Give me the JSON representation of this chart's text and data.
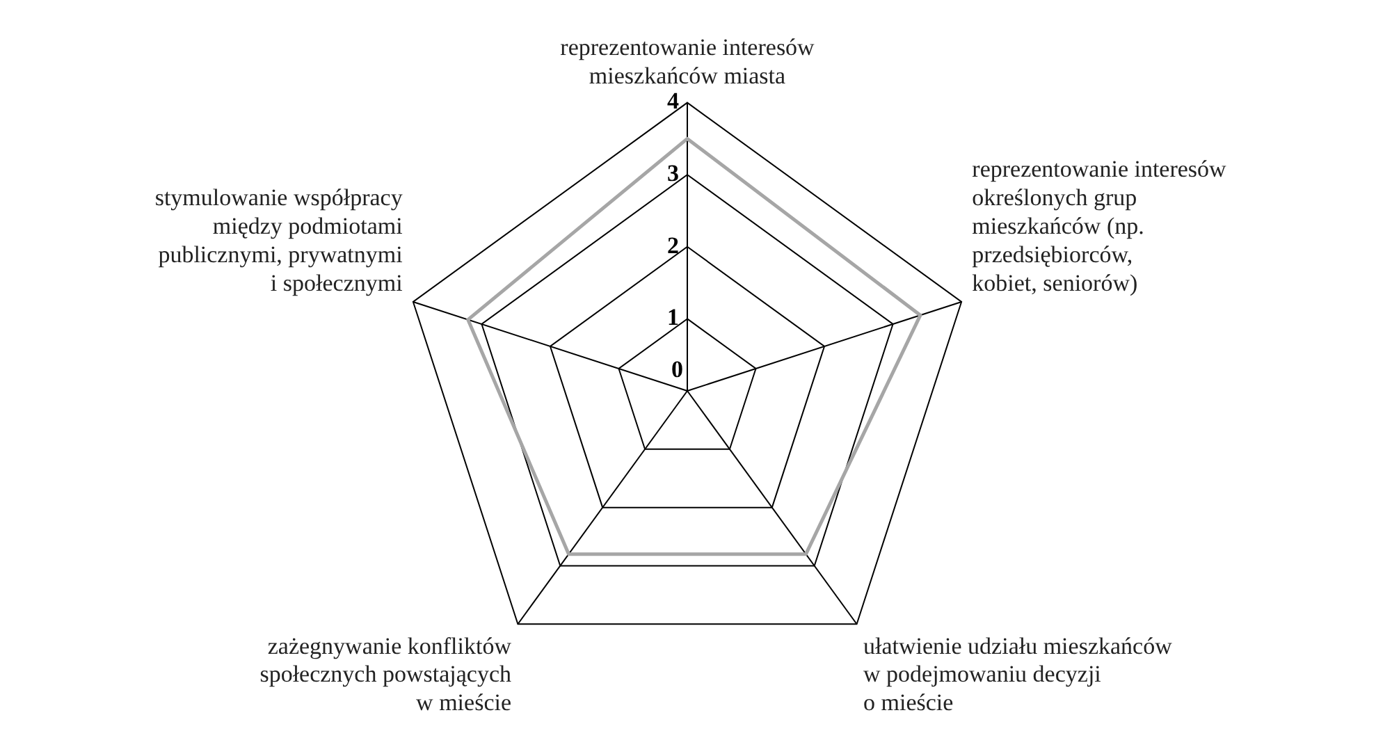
{
  "chart_data": {
    "type": "radar",
    "categories": [
      "reprezentowanie interesów\nmieszkańców miasta",
      "reprezentowanie interesów\nokreślonych grup\nmieszkańców (np.\nprzedsiębiorców,\nkobiet, seniorów)",
      "ułatwienie udziału mieszkańców\nw podejmowaniu decyzji\no mieście",
      "zażegnywanie konfliktów\nspołecznych powstających\nw mieście",
      "stymulowanie współpracy\nmiędzy podmiotami\npublicznymi, prywatnymi\ni społecznymi"
    ],
    "series": [
      {
        "color": "#a6a6a6",
        "values": [
          3.5,
          3.4,
          2.8,
          2.8,
          3.2
        ]
      }
    ],
    "ylim": [
      0,
      4
    ],
    "yticks": [
      0,
      1,
      2,
      3,
      4
    ],
    "grid": true,
    "legend": false,
    "marker": "none"
  }
}
